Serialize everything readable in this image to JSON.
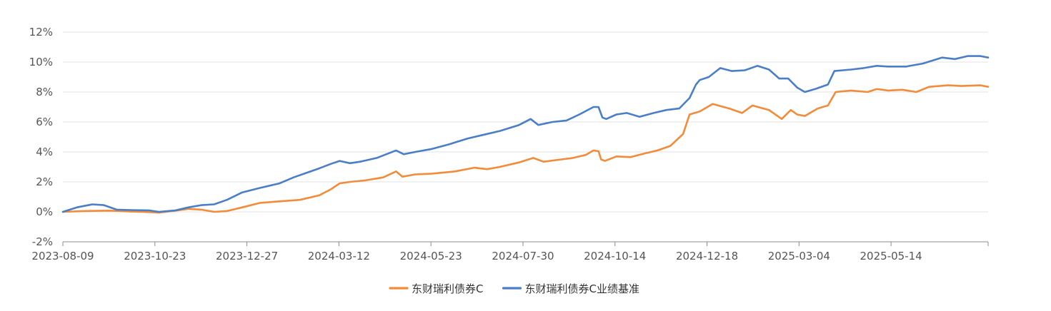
{
  "chart_data": {
    "type": "line",
    "title": "",
    "xlabel": "",
    "ylabel": "",
    "ylim": [
      -2,
      12
    ],
    "y_ticks": [
      "12%",
      "10%",
      "8%",
      "6%",
      "4%",
      "2%",
      "0%",
      "-2%"
    ],
    "y_tick_values": [
      12,
      10,
      8,
      6,
      4,
      2,
      0,
      -2
    ],
    "x_tick_labels": [
      "2023-08-09",
      "2023-10-23",
      "2023-12-27",
      "2024-03-12",
      "2024-05-23",
      "2024-07-30",
      "2024-10-14",
      "2024-12-18",
      "2025-03-04",
      "2025-05-14"
    ],
    "x_range": [
      "2023-08-09",
      "2025-07-31"
    ],
    "grid": true,
    "legend_position": "bottom-center",
    "series": [
      {
        "name": "东财瑞利债券C",
        "color": "#f28b3a",
        "points": [
          [
            "2023-08-09",
            0.0
          ],
          [
            "2023-08-25",
            0.05
          ],
          [
            "2023-09-15",
            0.08
          ],
          [
            "2023-10-01",
            0.02
          ],
          [
            "2023-10-10",
            0.0
          ],
          [
            "2023-10-23",
            -0.05
          ],
          [
            "2023-11-05",
            0.08
          ],
          [
            "2023-11-15",
            0.2
          ],
          [
            "2023-11-25",
            0.15
          ],
          [
            "2023-12-05",
            0.0
          ],
          [
            "2023-12-15",
            0.05
          ],
          [
            "2023-12-27",
            0.3
          ],
          [
            "2024-01-10",
            0.6
          ],
          [
            "2024-01-25",
            0.7
          ],
          [
            "2024-02-10",
            0.8
          ],
          [
            "2024-02-25",
            1.1
          ],
          [
            "2024-03-05",
            1.5
          ],
          [
            "2024-03-12",
            1.9
          ],
          [
            "2024-03-20",
            2.0
          ],
          [
            "2024-04-01",
            2.1
          ],
          [
            "2024-04-15",
            2.3
          ],
          [
            "2024-04-25",
            2.7
          ],
          [
            "2024-04-30",
            2.35
          ],
          [
            "2024-05-10",
            2.5
          ],
          [
            "2024-05-23",
            2.55
          ],
          [
            "2024-06-10",
            2.7
          ],
          [
            "2024-06-25",
            2.95
          ],
          [
            "2024-07-05",
            2.85
          ],
          [
            "2024-07-15",
            3.0
          ],
          [
            "2024-07-30",
            3.3
          ],
          [
            "2024-08-10",
            3.6
          ],
          [
            "2024-08-18",
            3.35
          ],
          [
            "2024-09-01",
            3.5
          ],
          [
            "2024-09-10",
            3.6
          ],
          [
            "2024-09-20",
            3.8
          ],
          [
            "2024-09-26",
            4.1
          ],
          [
            "2024-09-30",
            4.05
          ],
          [
            "2024-10-02",
            3.5
          ],
          [
            "2024-10-05",
            3.4
          ],
          [
            "2024-10-14",
            3.7
          ],
          [
            "2024-10-25",
            3.65
          ],
          [
            "2024-11-05",
            3.9
          ],
          [
            "2024-11-15",
            4.1
          ],
          [
            "2024-11-25",
            4.4
          ],
          [
            "2024-12-05",
            5.2
          ],
          [
            "2024-12-10",
            6.5
          ],
          [
            "2024-12-18",
            6.7
          ],
          [
            "2024-12-28",
            7.2
          ],
          [
            "2025-01-10",
            6.9
          ],
          [
            "2025-01-20",
            6.6
          ],
          [
            "2025-01-28",
            7.1
          ],
          [
            "2025-02-10",
            6.8
          ],
          [
            "2025-02-20",
            6.2
          ],
          [
            "2025-02-27",
            6.8
          ],
          [
            "2025-03-04",
            6.5
          ],
          [
            "2025-03-10",
            6.4
          ],
          [
            "2025-03-20",
            6.9
          ],
          [
            "2025-03-28",
            7.1
          ],
          [
            "2025-04-03",
            8.0
          ],
          [
            "2025-04-15",
            8.1
          ],
          [
            "2025-04-28",
            8.0
          ],
          [
            "2025-05-05",
            8.2
          ],
          [
            "2025-05-14",
            8.1
          ],
          [
            "2025-05-25",
            8.15
          ],
          [
            "2025-06-05",
            8.0
          ],
          [
            "2025-06-15",
            8.35
          ],
          [
            "2025-06-30",
            8.45
          ],
          [
            "2025-07-10",
            8.4
          ],
          [
            "2025-07-25",
            8.45
          ],
          [
            "2025-07-31",
            8.35
          ]
        ]
      },
      {
        "name": "东财瑞利债券C业绩基准",
        "color": "#4a7fc8",
        "points": [
          [
            "2023-08-09",
            0.0
          ],
          [
            "2023-08-20",
            0.3
          ],
          [
            "2023-09-01",
            0.5
          ],
          [
            "2023-09-10",
            0.45
          ],
          [
            "2023-09-20",
            0.15
          ],
          [
            "2023-10-01",
            0.12
          ],
          [
            "2023-10-15",
            0.1
          ],
          [
            "2023-10-23",
            0.0
          ],
          [
            "2023-11-05",
            0.1
          ],
          [
            "2023-11-15",
            0.3
          ],
          [
            "2023-11-25",
            0.45
          ],
          [
            "2023-12-05",
            0.5
          ],
          [
            "2023-12-15",
            0.8
          ],
          [
            "2023-12-27",
            1.3
          ],
          [
            "2024-01-10",
            1.6
          ],
          [
            "2024-01-25",
            1.9
          ],
          [
            "2024-02-05",
            2.3
          ],
          [
            "2024-02-15",
            2.6
          ],
          [
            "2024-02-25",
            2.9
          ],
          [
            "2024-03-05",
            3.2
          ],
          [
            "2024-03-12",
            3.4
          ],
          [
            "2024-03-20",
            3.25
          ],
          [
            "2024-03-28",
            3.35
          ],
          [
            "2024-04-10",
            3.6
          ],
          [
            "2024-04-25",
            4.1
          ],
          [
            "2024-05-01",
            3.85
          ],
          [
            "2024-05-10",
            4.0
          ],
          [
            "2024-05-23",
            4.2
          ],
          [
            "2024-06-05",
            4.5
          ],
          [
            "2024-06-20",
            4.9
          ],
          [
            "2024-07-05",
            5.2
          ],
          [
            "2024-07-15",
            5.4
          ],
          [
            "2024-07-30",
            5.8
          ],
          [
            "2024-08-08",
            6.2
          ],
          [
            "2024-08-14",
            5.8
          ],
          [
            "2024-08-25",
            6.0
          ],
          [
            "2024-09-05",
            6.1
          ],
          [
            "2024-09-15",
            6.5
          ],
          [
            "2024-09-26",
            7.0
          ],
          [
            "2024-09-30",
            7.0
          ],
          [
            "2024-10-03",
            6.3
          ],
          [
            "2024-10-06",
            6.2
          ],
          [
            "2024-10-14",
            6.5
          ],
          [
            "2024-10-22",
            6.6
          ],
          [
            "2024-11-01",
            6.35
          ],
          [
            "2024-11-12",
            6.6
          ],
          [
            "2024-11-22",
            6.8
          ],
          [
            "2024-12-02",
            6.9
          ],
          [
            "2024-12-10",
            7.6
          ],
          [
            "2024-12-15",
            8.5
          ],
          [
            "2024-12-18",
            8.8
          ],
          [
            "2024-12-25",
            9.0
          ],
          [
            "2025-01-03",
            9.6
          ],
          [
            "2025-01-12",
            9.4
          ],
          [
            "2025-01-22",
            9.45
          ],
          [
            "2025-02-01",
            9.75
          ],
          [
            "2025-02-10",
            9.5
          ],
          [
            "2025-02-18",
            8.9
          ],
          [
            "2025-02-25",
            8.9
          ],
          [
            "2025-03-04",
            8.3
          ],
          [
            "2025-03-10",
            8.0
          ],
          [
            "2025-03-18",
            8.2
          ],
          [
            "2025-03-28",
            8.5
          ],
          [
            "2025-04-02",
            9.4
          ],
          [
            "2025-04-15",
            9.5
          ],
          [
            "2025-04-25",
            9.6
          ],
          [
            "2025-05-05",
            9.75
          ],
          [
            "2025-05-14",
            9.7
          ],
          [
            "2025-05-28",
            9.7
          ],
          [
            "2025-06-10",
            9.9
          ],
          [
            "2025-06-25",
            10.3
          ],
          [
            "2025-07-05",
            10.2
          ],
          [
            "2025-07-15",
            10.4
          ],
          [
            "2025-07-25",
            10.4
          ],
          [
            "2025-07-31",
            10.3
          ]
        ]
      }
    ]
  }
}
